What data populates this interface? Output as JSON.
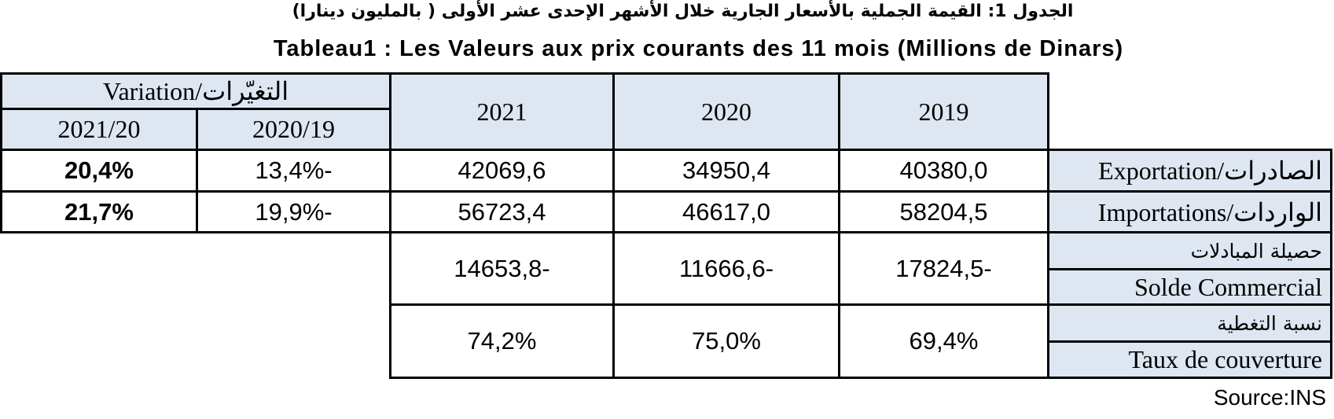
{
  "title_ar": "الجدول 1:   القيمة الجملية بالأسعار الجارية خلال  الأشهر الإحدى عشر الأولى ( بالمليون دينارا)",
  "title_fr": "Tableau1 : Les Valeurs aux prix courants des 11 mois (Millions de Dinars)",
  "header": {
    "variation": "Variation/التغيّرات",
    "var_2021_20": "2021/20",
    "var_2020_19": "2020/19",
    "y2021": "2021",
    "y2020": "2020",
    "y2019": "2019"
  },
  "rows": {
    "export": {
      "label": "Exportation/الصادرات",
      "var_2021_20": "20,4%",
      "var_2020_19": "13,4%-",
      "y2021": "42069,6",
      "y2020": "34950,4",
      "y2019": "40380,0"
    },
    "import": {
      "label": "Importations/الواردات",
      "var_2021_20": "21,7%",
      "var_2020_19": "19,9%-",
      "y2021": "56723,4",
      "y2020": "46617,0",
      "y2019": "58204,5"
    },
    "solde": {
      "label_ar": "حصيلة المبادلات",
      "label_fr": "Solde Commercial",
      "y2021": "14653,8-",
      "y2020": "11666,6-",
      "y2019": "17824,5-"
    },
    "taux": {
      "label_ar": "نسبة التغطية",
      "label_fr": "Taux de couverture",
      "y2021": "74,2%",
      "y2020": "75,0%",
      "y2019": "69,4%"
    }
  },
  "source": "Source:INS"
}
